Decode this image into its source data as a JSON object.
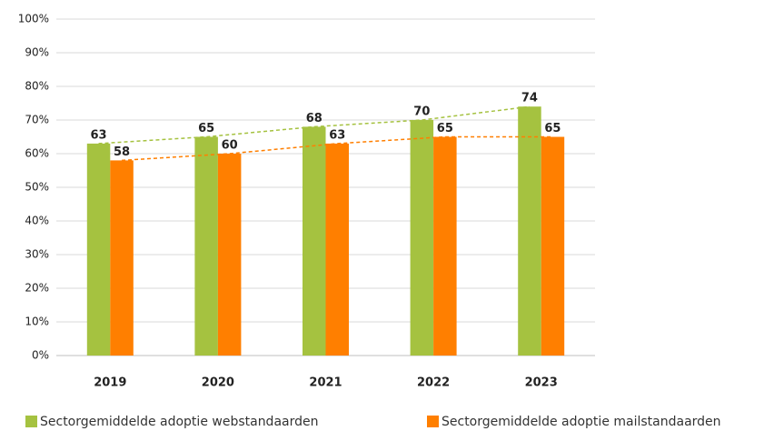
{
  "chart_data": {
    "type": "bar",
    "categories": [
      "2019",
      "2020",
      "2021",
      "2022",
      "2023"
    ],
    "series": [
      {
        "name": "Sectorgemiddelde adoptie webstandaarden",
        "color": "#a5c240",
        "values": [
          63,
          65,
          68,
          70,
          74
        ]
      },
      {
        "name": "Sectorgemiddelde adoptie mailstandaarden",
        "color": "#ff7f00",
        "values": [
          58,
          60,
          63,
          65,
          65
        ]
      }
    ],
    "ylim": [
      0,
      100
    ],
    "yticks": [
      {
        "value": 0,
        "label": "0%"
      },
      {
        "value": 10,
        "label": "10%"
      },
      {
        "value": 20,
        "label": "20%"
      },
      {
        "value": 30,
        "label": "30%"
      },
      {
        "value": 40,
        "label": "40%"
      },
      {
        "value": 50,
        "label": "50%"
      },
      {
        "value": 60,
        "label": "60%"
      },
      {
        "value": 70,
        "label": "70%"
      },
      {
        "value": 80,
        "label": "80%"
      },
      {
        "value": 90,
        "label": "90%"
      },
      {
        "value": 100,
        "label": "100%"
      }
    ],
    "grid": true,
    "legend": "bottom"
  }
}
